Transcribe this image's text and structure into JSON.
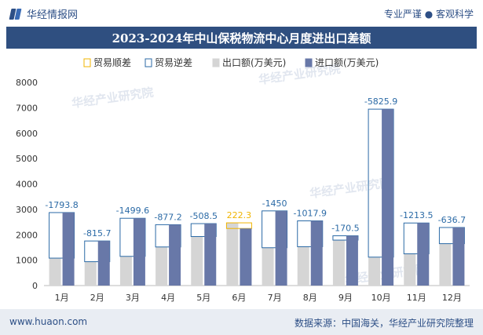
{
  "header": {
    "brand": "华经情报网",
    "slogan": "专业严谨 ● 客观科学"
  },
  "title": "2023-2024年中山保税物流中心月度进出口差额",
  "footer": {
    "url": "www.huaon.com",
    "source": "数据来源：中国海关，华经产业研究院整理"
  },
  "watermark": "华经产业研究院",
  "colors": {
    "surplus": "#f0b400",
    "deficit": "#2b6aa6",
    "export": "#d5d5d5",
    "import": "#6878a8"
  },
  "chart_data": {
    "type": "bar",
    "categories": [
      "1月",
      "2月",
      "3月",
      "4月",
      "5月",
      "6月",
      "7月",
      "8月",
      "9月",
      "10月",
      "11月",
      "12月"
    ],
    "ylim": [
      0,
      8000
    ],
    "yticks": [
      0,
      1000,
      2000,
      3000,
      4000,
      5000,
      6000,
      7000,
      8000
    ],
    "legend": [
      "贸易顺差",
      "贸易逆差",
      "出口额(万美元)",
      "进口额(万美元)"
    ],
    "legend_position": "top",
    "series": [
      {
        "name": "出口额(万美元)",
        "values": [
          1080,
          940,
          1150,
          1520,
          1930,
          2470,
          1490,
          1530,
          1790,
          1120,
          1250,
          1650
        ]
      },
      {
        "name": "进口额(万美元)",
        "values": [
          2873.8,
          1755.7,
          2649.6,
          2397.2,
          2438.5,
          2247.7,
          2940,
          2547.9,
          1960.5,
          6945.9,
          2463.5,
          2286.7
        ]
      }
    ],
    "balance": {
      "values": [
        -1793.8,
        -815.7,
        -1499.6,
        -877.2,
        -508.5,
        222.3,
        -1450,
        -1017.9,
        -170.5,
        -5825.9,
        -1213.5,
        -636.7
      ],
      "labels": [
        "-1793.8",
        "-815.7",
        "-1499.6",
        "-877.2",
        "-508.5",
        "222.3",
        "-1450",
        "-1017.9",
        "-170.5",
        "-5825.9",
        "-1213.5",
        "-636.7"
      ]
    }
  }
}
